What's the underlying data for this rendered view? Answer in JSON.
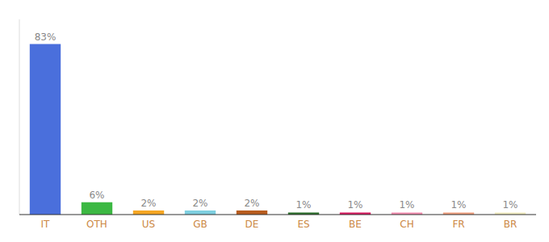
{
  "chart_data": {
    "type": "bar",
    "categories": [
      "IT",
      "OTH",
      "US",
      "GB",
      "DE",
      "ES",
      "BE",
      "CH",
      "FR",
      "BR"
    ],
    "values": [
      83,
      6,
      2,
      2,
      2,
      1,
      1,
      1,
      1,
      1
    ],
    "value_labels": [
      "83%",
      "6%",
      "2%",
      "2%",
      "2%",
      "1%",
      "1%",
      "1%",
      "1%",
      "1%"
    ],
    "colors": [
      "#4a6fdc",
      "#3cb843",
      "#f5a623",
      "#7ecfe0",
      "#b85c1e",
      "#2a6e2a",
      "#d81b60",
      "#f48fb1",
      "#f0a080",
      "#f0ecc0"
    ],
    "ylim": [
      0,
      95
    ],
    "data_labels": true,
    "tick_labels": "x",
    "grid": false
  }
}
